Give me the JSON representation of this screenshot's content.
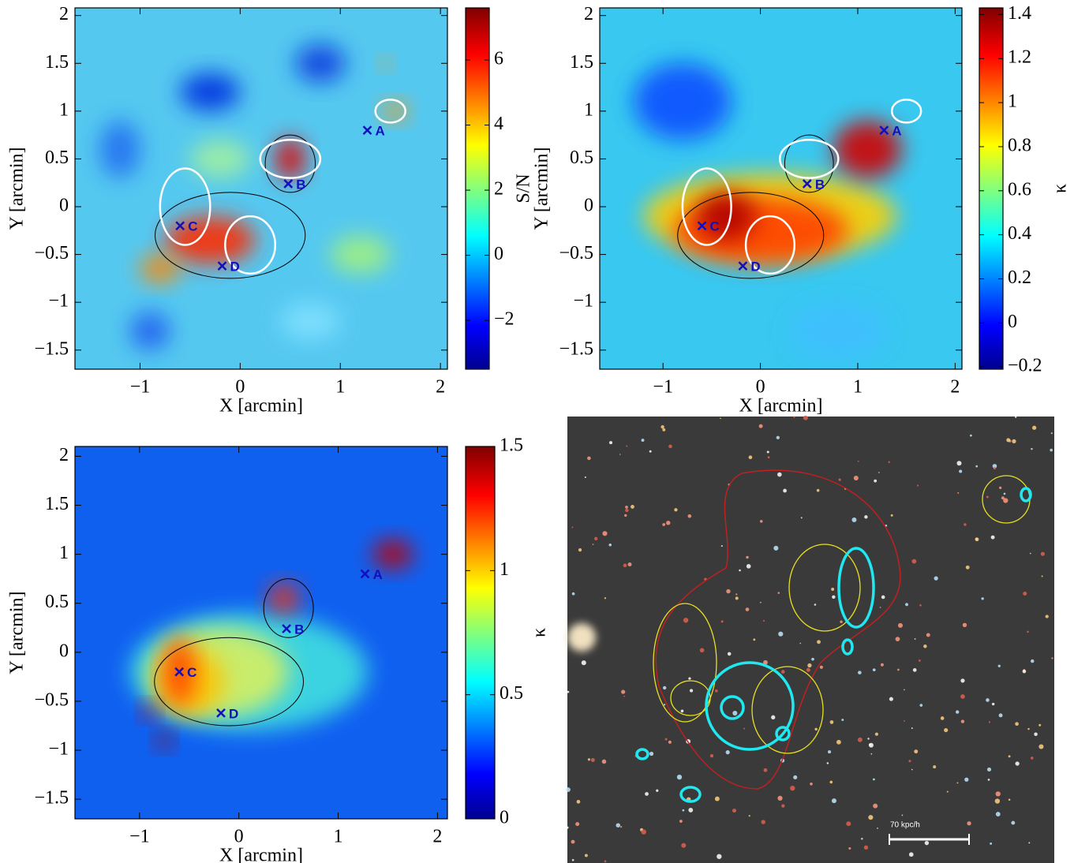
{
  "chart_data": [
    {
      "type": "heatmap",
      "xlabel": "X [arcmin]",
      "ylabel": "Y [arcmin]",
      "colorbar_label": "S/N",
      "xlim": [
        -1.65,
        2.07
      ],
      "ylim": [
        -1.7,
        2.08
      ],
      "xticks": [
        {
          "value": -1,
          "label": "−1"
        },
        0,
        1,
        2
      ],
      "yticks": [
        {
          "value": -1.5,
          "label": "−1.5"
        },
        {
          "value": -1,
          "label": "−1"
        },
        {
          "value": -0.5,
          "label": "−0.5"
        },
        0,
        0.5,
        1,
        1.5,
        2
      ],
      "clim": [
        -3.5,
        7.6
      ],
      "cticks": [
        {
          "value": -2,
          "label": "−2"
        },
        0,
        2,
        4,
        6
      ],
      "points": [
        {
          "label": "A",
          "x": 1.27,
          "y": 0.8
        },
        {
          "label": "B",
          "x": 0.48,
          "y": 0.24
        },
        {
          "label": "C",
          "x": -0.6,
          "y": -0.2
        },
        {
          "label": "D",
          "x": -0.18,
          "y": -0.62
        }
      ]
    },
    {
      "type": "heatmap",
      "xlabel": "X [arcmin]",
      "ylabel": "Y [arcmin]",
      "colorbar_label": "κ",
      "xlim": [
        -1.65,
        2.07
      ],
      "ylim": [
        -1.7,
        2.08
      ],
      "xticks": [
        {
          "value": -1,
          "label": "−1"
        },
        0,
        1,
        2
      ],
      "yticks": [
        {
          "value": -1.5,
          "label": "−1.5"
        },
        {
          "value": -1,
          "label": "−1"
        },
        {
          "value": -0.5,
          "label": "−0.5"
        },
        0,
        0.5,
        1,
        1.5,
        2
      ],
      "clim": [
        -0.21,
        1.43
      ],
      "cticks": [
        {
          "value": -0.2,
          "label": "−0.2"
        },
        0,
        0.2,
        0.4,
        0.6,
        0.8,
        1,
        1.2,
        1.4
      ],
      "points": [
        {
          "label": "A",
          "x": 1.27,
          "y": 0.8
        },
        {
          "label": "B",
          "x": 0.48,
          "y": 0.24
        },
        {
          "label": "C",
          "x": -0.6,
          "y": -0.2
        },
        {
          "label": "D",
          "x": -0.18,
          "y": -0.62
        }
      ]
    },
    {
      "type": "heatmap",
      "xlabel": "X [arcmin]",
      "ylabel": "Y [arcmin]",
      "colorbar_label": "κ",
      "xlim": [
        -1.65,
        2.1
      ],
      "ylim": [
        -1.7,
        2.1
      ],
      "xticks": [
        {
          "value": -1,
          "label": "−1"
        },
        0,
        1,
        2
      ],
      "yticks": [
        {
          "value": -1.5,
          "label": "−1.5"
        },
        {
          "value": -1,
          "label": "−1"
        },
        {
          "value": -0.5,
          "label": "−0.5"
        },
        0,
        0.5,
        1,
        1.5,
        2
      ],
      "clim": [
        0,
        1.5
      ],
      "cticks": [
        0,
        0.5,
        1,
        1.5
      ],
      "points": [
        {
          "label": "A",
          "x": 1.27,
          "y": 0.8
        },
        {
          "label": "B",
          "x": 0.48,
          "y": 0.24
        },
        {
          "label": "C",
          "x": -0.6,
          "y": -0.2
        },
        {
          "label": "D",
          "x": -0.18,
          "y": -0.62
        }
      ]
    },
    {
      "type": "image",
      "scalebar_label": "70 kpc/h"
    }
  ]
}
